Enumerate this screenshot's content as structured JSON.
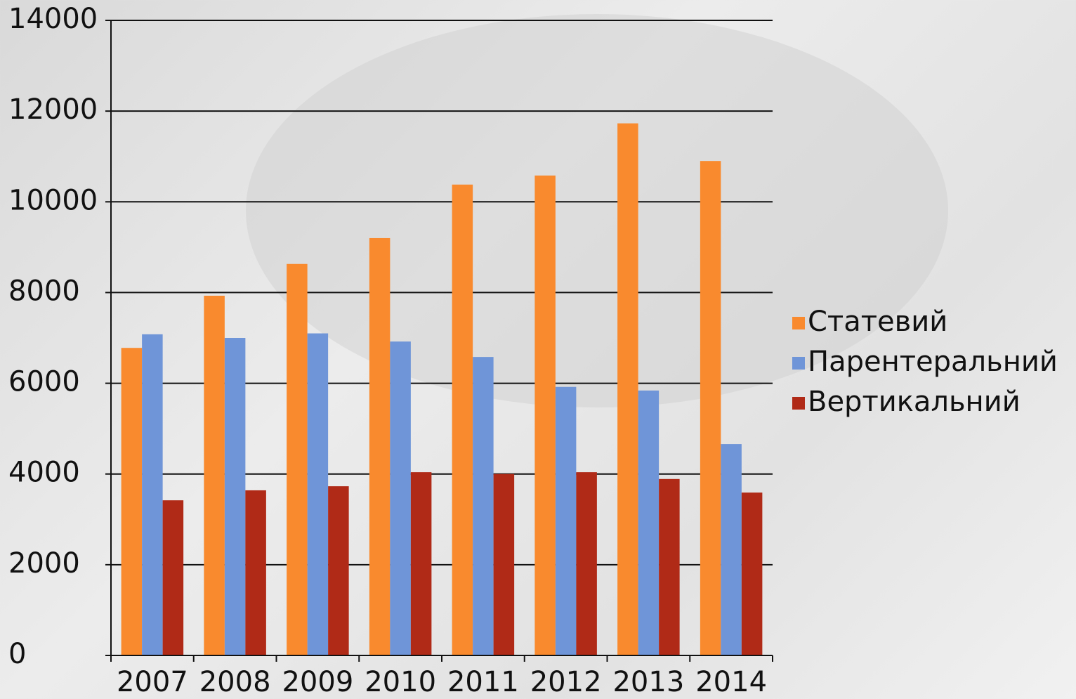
{
  "chart_data": {
    "type": "bar",
    "categories": [
      "2007",
      "2008",
      "2009",
      "2010",
      "2011",
      "2012",
      "2013",
      "2014"
    ],
    "series": [
      {
        "name": "Статевий",
        "color": "#f98a2e",
        "values": [
          6780,
          7930,
          8630,
          9200,
          10380,
          10580,
          11730,
          10900
        ]
      },
      {
        "name": "Парентеральний",
        "color": "#6f95d8",
        "values": [
          7080,
          7000,
          7100,
          6920,
          6580,
          5920,
          5840,
          4660
        ]
      },
      {
        "name": "Вертикальний",
        "color": "#b02a17",
        "values": [
          3420,
          3640,
          3730,
          4040,
          4000,
          4040,
          3890,
          3590
        ]
      }
    ],
    "ylim": [
      0,
      14000
    ],
    "yticks": [
      0,
      2000,
      4000,
      6000,
      8000,
      10000,
      12000,
      14000
    ],
    "grid": true,
    "legend": "right"
  }
}
